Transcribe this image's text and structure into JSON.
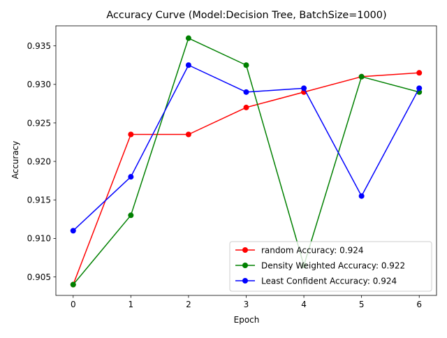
{
  "chart_data": {
    "type": "line",
    "title": "Accuracy Curve (Model:Decision Tree, BatchSize=1000)",
    "xlabel": "Epoch",
    "ylabel": "Accuracy",
    "x": [
      0,
      1,
      2,
      3,
      4,
      5,
      6
    ],
    "xticks": [
      "0",
      "1",
      "2",
      "3",
      "4",
      "5",
      "6"
    ],
    "yticks": [
      "0.905",
      "0.910",
      "0.915",
      "0.920",
      "0.925",
      "0.930",
      "0.935"
    ],
    "xlim": [
      -0.3,
      6.3
    ],
    "ylim": [
      0.9026,
      0.9376
    ],
    "grid": false,
    "legend_position": "lower right",
    "series": [
      {
        "name": "random Accuracy: 0.924",
        "color": "#ff0000",
        "values": [
          0.904,
          0.9235,
          0.9235,
          0.927,
          0.929,
          0.931,
          0.9315
        ]
      },
      {
        "name": "Density Weighted Accuracy: 0.922",
        "color": "#008000",
        "values": [
          0.904,
          0.913,
          0.936,
          0.9325,
          0.9065,
          0.931,
          0.929
        ]
      },
      {
        "name": "Least Confident Accuracy: 0.924",
        "color": "#0000ff",
        "values": [
          0.911,
          0.918,
          0.9325,
          0.929,
          0.9295,
          0.9155,
          0.9295
        ]
      }
    ]
  }
}
